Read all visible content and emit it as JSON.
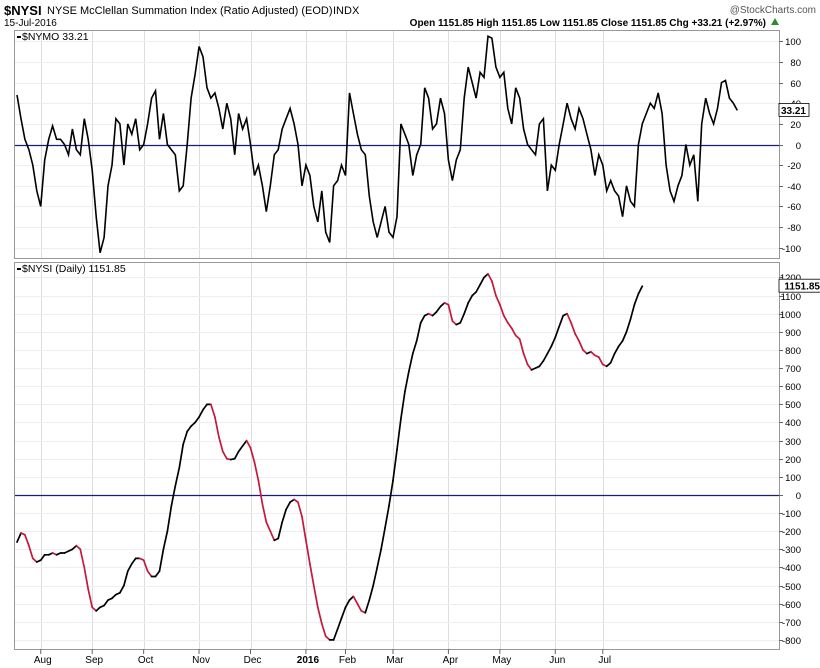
{
  "header": {
    "symbol": "$NYSI",
    "name": "NYSE McClellan Summation Index (Ratio Adjusted) (EOD)",
    "exchange": "INDX",
    "date": "15-Jul-2016",
    "credit": "@StockCharts.com",
    "ohlc": "Open 1151.85  High 1151.85  Low 1151.85  Close 1151.85  Chg +33.21 (+2.97%)"
  },
  "chart_data": [
    {
      "type": "line",
      "legend": "$NYMO 33.21",
      "last_value_label": "33.21",
      "color": "#000000",
      "zero_line_color": "#1c1c7a",
      "ylim": [
        -110,
        110
      ],
      "yticks": [
        -100,
        -80,
        -60,
        -40,
        -20,
        0,
        20,
        40,
        60,
        80,
        100
      ],
      "x_unit": "trading day index (0 = late Jul 2015, 190 = 15-Jul-2016)",
      "values": [
        48,
        25,
        5,
        -5,
        -20,
        -45,
        -60,
        -15,
        5,
        18,
        5,
        5,
        0,
        -10,
        15,
        -5,
        -10,
        25,
        5,
        -25,
        -70,
        -105,
        -90,
        -40,
        -20,
        25,
        20,
        -20,
        20,
        10,
        25,
        -5,
        0,
        20,
        45,
        52,
        5,
        30,
        0,
        -5,
        -10,
        -45,
        -40,
        0,
        45,
        68,
        95,
        85,
        55,
        45,
        50,
        35,
        15,
        40,
        25,
        -10,
        30,
        15,
        25,
        0,
        -30,
        -20,
        -40,
        -65,
        -40,
        -10,
        -5,
        15,
        25,
        35,
        20,
        0,
        -40,
        -20,
        -30,
        -60,
        -75,
        -45,
        -85,
        -95,
        -40,
        -35,
        -20,
        -30,
        50,
        30,
        10,
        -5,
        -10,
        -50,
        -75,
        -90,
        -75,
        -60,
        -85,
        -90,
        -70,
        20,
        10,
        0,
        -30,
        -10,
        0,
        55,
        45,
        15,
        20,
        45,
        30,
        -15,
        -35,
        -15,
        -5,
        45,
        75,
        60,
        45,
        70,
        65,
        105,
        103,
        75,
        65,
        70,
        35,
        20,
        55,
        45,
        15,
        0,
        -5,
        -10,
        20,
        25,
        -45,
        -20,
        -25,
        0,
        20,
        40,
        25,
        15,
        35,
        25,
        10,
        -5,
        -30,
        -10,
        -20,
        -45,
        -35,
        -45,
        -50,
        -70,
        -40,
        -55,
        -60,
        0,
        20,
        30,
        40,
        35,
        50,
        30,
        -20,
        -45,
        -55,
        -40,
        -30,
        0,
        -20,
        -10,
        -55,
        20,
        45,
        30,
        20,
        35,
        60,
        62,
        45,
        40,
        33
      ],
      "marks": []
    },
    {
      "type": "line",
      "legend": "$NYSI (Daily) 1151.85",
      "last_value_label": "1151.85",
      "rising_color": "#000000",
      "falling_color": "#c4183c",
      "zero_line_color": "#1c1c7a",
      "ylim": [
        -850,
        1280
      ],
      "yticks": [
        -800,
        -700,
        -600,
        -500,
        -400,
        -300,
        -200,
        -100,
        0,
        100,
        200,
        300,
        400,
        500,
        600,
        700,
        800,
        900,
        1000,
        1100,
        1200
      ],
      "x_unit": "trading day index (0 = late Jul 2015, 190 = 15-Jul-2016)",
      "values": [
        -260,
        -210,
        -220,
        -280,
        -350,
        -370,
        -360,
        -330,
        -330,
        -320,
        -330,
        -320,
        -320,
        -310,
        -300,
        -280,
        -300,
        -400,
        -520,
        -620,
        -640,
        -620,
        -610,
        -580,
        -570,
        -550,
        -540,
        -500,
        -420,
        -380,
        -350,
        -350,
        -360,
        -420,
        -450,
        -450,
        -420,
        -300,
        -200,
        -60,
        50,
        150,
        280,
        350,
        380,
        400,
        430,
        470,
        500,
        500,
        430,
        320,
        240,
        200,
        195,
        200,
        240,
        270,
        300,
        260,
        180,
        80,
        -50,
        -150,
        -200,
        -250,
        -240,
        -150,
        -80,
        -40,
        -25,
        -40,
        -120,
        -250,
        -380,
        -500,
        -620,
        -710,
        -780,
        -800,
        -800,
        -740,
        -680,
        -620,
        -580,
        -560,
        -600,
        -640,
        -650,
        -580,
        -500,
        -400,
        -300,
        -180,
        -60,
        80,
        250,
        420,
        570,
        680,
        780,
        850,
        950,
        990,
        1000,
        990,
        1010,
        1040,
        1060,
        1050,
        960,
        940,
        950,
        1000,
        1060,
        1100,
        1120,
        1160,
        1200,
        1220,
        1180,
        1100,
        1050,
        990,
        950,
        920,
        880,
        860,
        780,
        720,
        690,
        700,
        710,
        740,
        780,
        820,
        870,
        930,
        990,
        1000,
        950,
        890,
        850,
        800,
        780,
        790,
        770,
        760,
        720,
        710,
        730,
        780,
        820,
        850,
        900,
        970,
        1050,
        1110,
        1151.85
      ],
      "marks": []
    }
  ],
  "x_axis": {
    "labels": [
      "Aug",
      "Sep",
      "Oct",
      "Nov",
      "Dec",
      "2016",
      "Feb",
      "Mar",
      "Apr",
      "May",
      "Jun",
      "Jul"
    ],
    "positions": [
      6,
      19,
      32,
      46,
      59,
      73,
      83,
      95,
      109,
      122,
      136,
      148
    ],
    "bold": [
      false,
      false,
      false,
      false,
      false,
      true,
      false,
      false,
      false,
      false,
      false,
      false
    ]
  }
}
